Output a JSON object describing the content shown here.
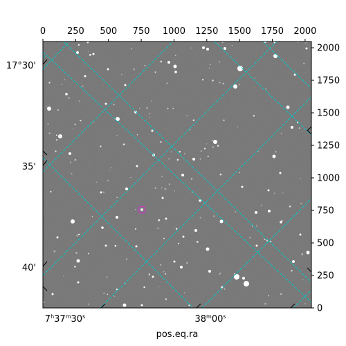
{
  "figure": {
    "xlabel": "pos.eq.ra",
    "pixel_axes": {
      "x_ticks": [
        0,
        250,
        500,
        750,
        1000,
        1250,
        1500,
        1750,
        2000
      ],
      "x_labels": [
        "0",
        "250",
        "500",
        "750",
        "1000",
        "1250",
        "1500",
        "1750",
        "2000"
      ],
      "x_range": [
        0,
        2048
      ],
      "y_ticks": [
        0,
        250,
        500,
        750,
        1000,
        1250,
        1500,
        1750,
        2000
      ],
      "y_labels": [
        "0",
        "250",
        "500",
        "750",
        "1000",
        "1250",
        "1500",
        "1750",
        "2000"
      ],
      "y_range": [
        0,
        2048
      ]
    },
    "world_axes": {
      "ra_labels": [
        {
          "pre": "7",
          "h": "h",
          "mm": "37",
          "m": "m",
          "ss": "30",
          "s": "s"
        },
        {
          "pre": "",
          "h": "",
          "mm": "38",
          "m": "m",
          "ss": "00",
          "s": "s"
        }
      ],
      "dec_labels": [
        "17°30'",
        "35'",
        "40'"
      ]
    },
    "colors": {
      "grid": "#00c8c8",
      "marker": "#c040c0",
      "background_sky": "#6f6f6f"
    },
    "marker": {
      "name": "target-circle",
      "x_pix": 760,
      "y_pix": 755
    }
  }
}
